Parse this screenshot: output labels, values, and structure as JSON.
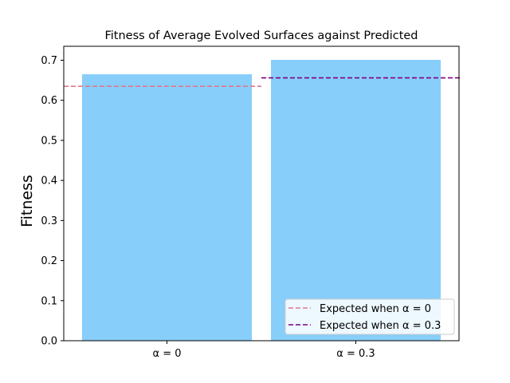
{
  "chart_data": {
    "type": "bar",
    "title": "Fitness of Average Evolved Surfaces against Predicted",
    "xlabel": "",
    "ylabel": "Fitness",
    "categories": [
      "α = 0",
      "α = 0.3"
    ],
    "values": [
      0.665,
      0.701
    ],
    "ylim": [
      0,
      0.7
    ],
    "yticks": [
      "0.0",
      "0.1",
      "0.2",
      "0.3",
      "0.4",
      "0.5",
      "0.6",
      "0.7"
    ],
    "bar_color": "#87cefa",
    "grid": false,
    "legend_position": "lower right",
    "reference_lines": [
      {
        "label": "Expected when α = 0",
        "value": 0.635,
        "color": "#e0788f",
        "style": "dashed",
        "category_index": 0
      },
      {
        "label": "Expected when α = 0.3",
        "value": 0.656,
        "color": "#800080",
        "style": "dashed",
        "category_index": 1
      }
    ]
  }
}
